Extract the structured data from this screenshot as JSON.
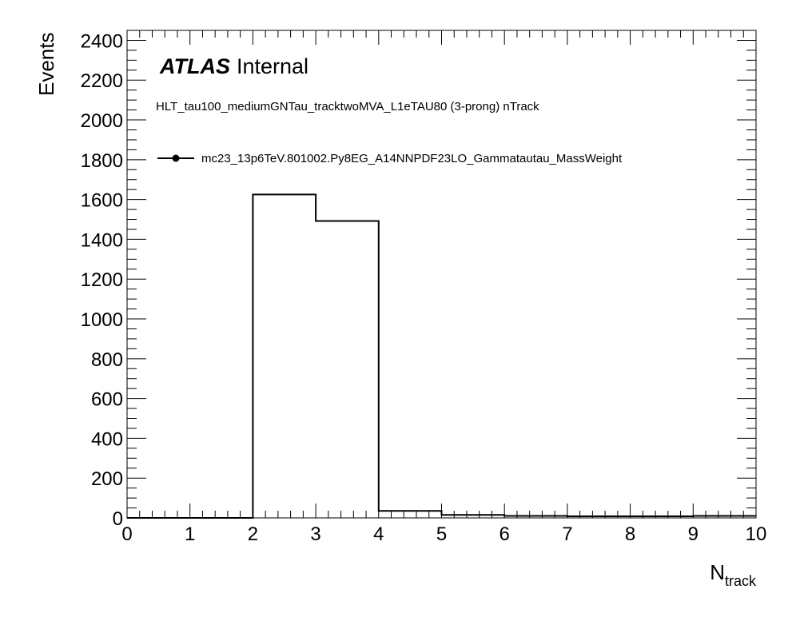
{
  "chart_data": {
    "type": "histogram",
    "title": "HLT_tau100_mediumGNTau_tracktwoMVA_L1eTAU80 (3-prong) nTrack",
    "experiment": {
      "name": "ATLAS",
      "status": "Internal"
    },
    "xlabel": {
      "main": "N",
      "sub": "track"
    },
    "ylabel": "Events",
    "xlim": [
      0,
      10
    ],
    "ylim": [
      0,
      2450
    ],
    "x_ticks": [
      0,
      1,
      2,
      3,
      4,
      5,
      6,
      7,
      8,
      9,
      10
    ],
    "y_ticks": [
      0,
      200,
      400,
      600,
      800,
      1000,
      1200,
      1400,
      1600,
      1800,
      2000,
      2200,
      2400
    ],
    "legend_placement": "top-left",
    "series": [
      {
        "name": "mc23_13p6TeV.801002.Py8EG_A14NNPDF23LO_Gammatautau_MassWeight",
        "color": "#000000",
        "bin_edges": [
          0,
          1,
          2,
          3,
          4,
          5,
          6,
          7,
          8,
          9,
          10
        ],
        "values": [
          0,
          0,
          1625,
          1492,
          35,
          15,
          10,
          8,
          8,
          10
        ]
      }
    ]
  }
}
